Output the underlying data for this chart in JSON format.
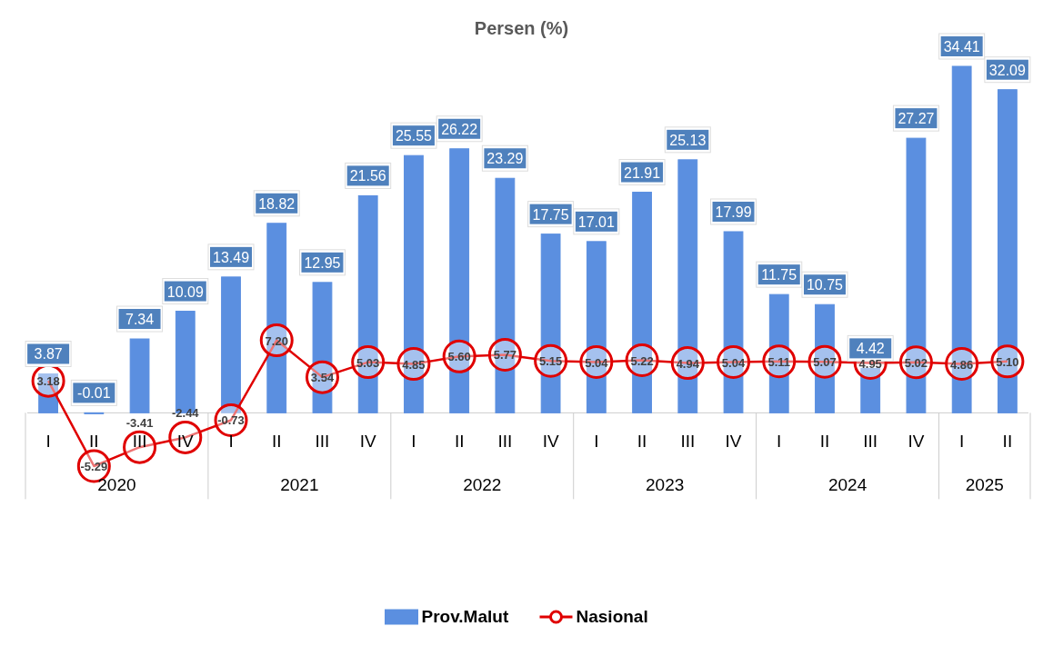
{
  "chart_data": {
    "type": "bar",
    "title": "Persen (%)",
    "categories": [
      "I",
      "II",
      "III",
      "IV",
      "I",
      "II",
      "III",
      "IV",
      "I",
      "II",
      "III",
      "IV",
      "I",
      "II",
      "III",
      "IV",
      "I",
      "II",
      "III",
      "IV",
      "I",
      "II"
    ],
    "series": [
      {
        "name": "Prov.Malut",
        "color": "#5b8fe0",
        "values": [
          3.87,
          -0.01,
          7.34,
          10.09,
          13.49,
          18.82,
          12.95,
          21.56,
          25.55,
          26.22,
          23.29,
          17.75,
          17.01,
          21.91,
          25.13,
          17.99,
          11.75,
          10.75,
          4.42,
          27.27,
          34.41,
          32.09
        ]
      },
      {
        "name": "Nasional",
        "type": "line",
        "color": "#e00000",
        "marker": "circle",
        "values": [
          3.18,
          -5.29,
          -3.41,
          -2.44,
          -0.73,
          7.2,
          3.54,
          5.03,
          4.85,
          5.6,
          5.77,
          5.15,
          5.04,
          5.22,
          4.94,
          5.04,
          5.11,
          5.07,
          4.95,
          5.02,
          4.86,
          5.1
        ],
        "value_labels": [
          "3.18",
          "-5.29",
          "-3.41",
          "-2.44",
          "-0.73",
          "7.20",
          "3.54",
          "5.03",
          "4.85",
          "5.60",
          "5.77",
          "5.15",
          "5.04",
          "5.22",
          "4.94",
          "5.04",
          "5.11",
          "5.07",
          "4.95",
          "5.02",
          "4.86",
          "5.10"
        ]
      }
    ],
    "annotations": [
      "2020",
      "2021",
      "2022",
      "2023",
      "2024",
      "2025"
    ],
    "data_labels": true,
    "legend": "bottom",
    "grid": false
  }
}
